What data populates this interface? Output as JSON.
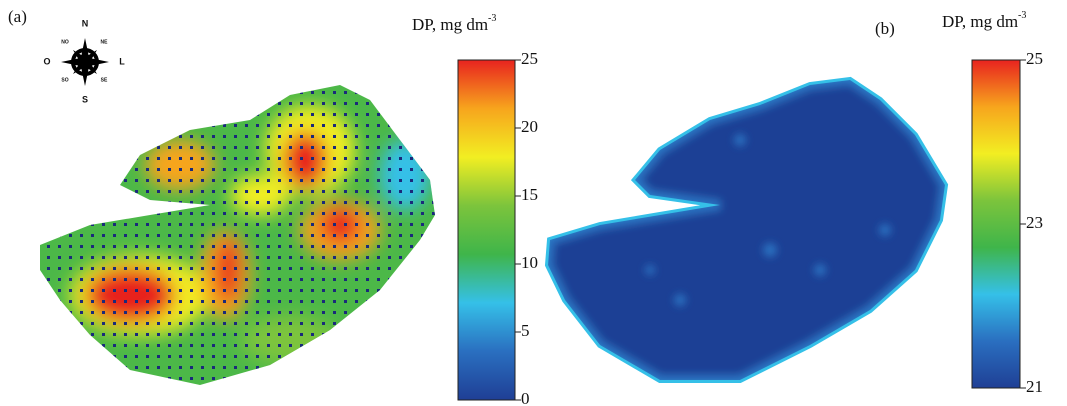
{
  "chart_data": [
    {
      "type": "map",
      "panel_label": "(a)",
      "colorbar_title": "DP, mg dm",
      "colorbar_title_exponent": "-3",
      "clim": [
        0,
        25
      ],
      "cticks": [
        0,
        5,
        10,
        15,
        20,
        25
      ],
      "colormap": [
        "#1f3f95",
        "#2a6fc0",
        "#35c0e8",
        "#3fb54a",
        "#7cc43c",
        "#f2ee22",
        "#f7a51d",
        "#e8231f"
      ],
      "compass": [
        "N",
        "NO",
        "NE",
        "O",
        "L",
        "SO",
        "SE",
        "S"
      ]
    },
    {
      "type": "map",
      "panel_label": "(b)",
      "colorbar_title": "DP, mg dm",
      "colorbar_title_exponent": "-3",
      "clim": [
        21,
        25
      ],
      "cticks": [
        21,
        23,
        25
      ],
      "colormap": [
        "#1f3f95",
        "#2a6fc0",
        "#35c0e8",
        "#3fb54a",
        "#7cc43c",
        "#f2ee22",
        "#f7a51d",
        "#e8231f"
      ]
    }
  ]
}
